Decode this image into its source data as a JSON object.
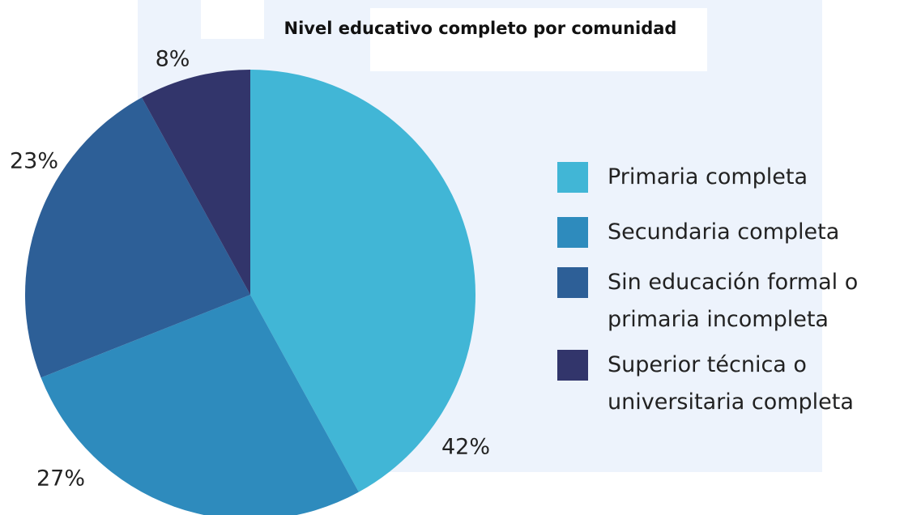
{
  "chart_data": {
    "type": "pie",
    "title": "Nivel educativo completo por comunidad",
    "categories": [
      "Primaria completa",
      "Secundaria completa",
      "Sin educación formal o primaria incompleta",
      "Superior técnica o universitaria completa"
    ],
    "values": [
      42,
      27,
      23,
      8
    ],
    "value_labels": [
      "42%",
      "27%",
      "23%",
      "8%"
    ],
    "colors": [
      "#41b6d6",
      "#2e8bbd",
      "#2d5f97",
      "#32356b"
    ],
    "legend": "right"
  }
}
